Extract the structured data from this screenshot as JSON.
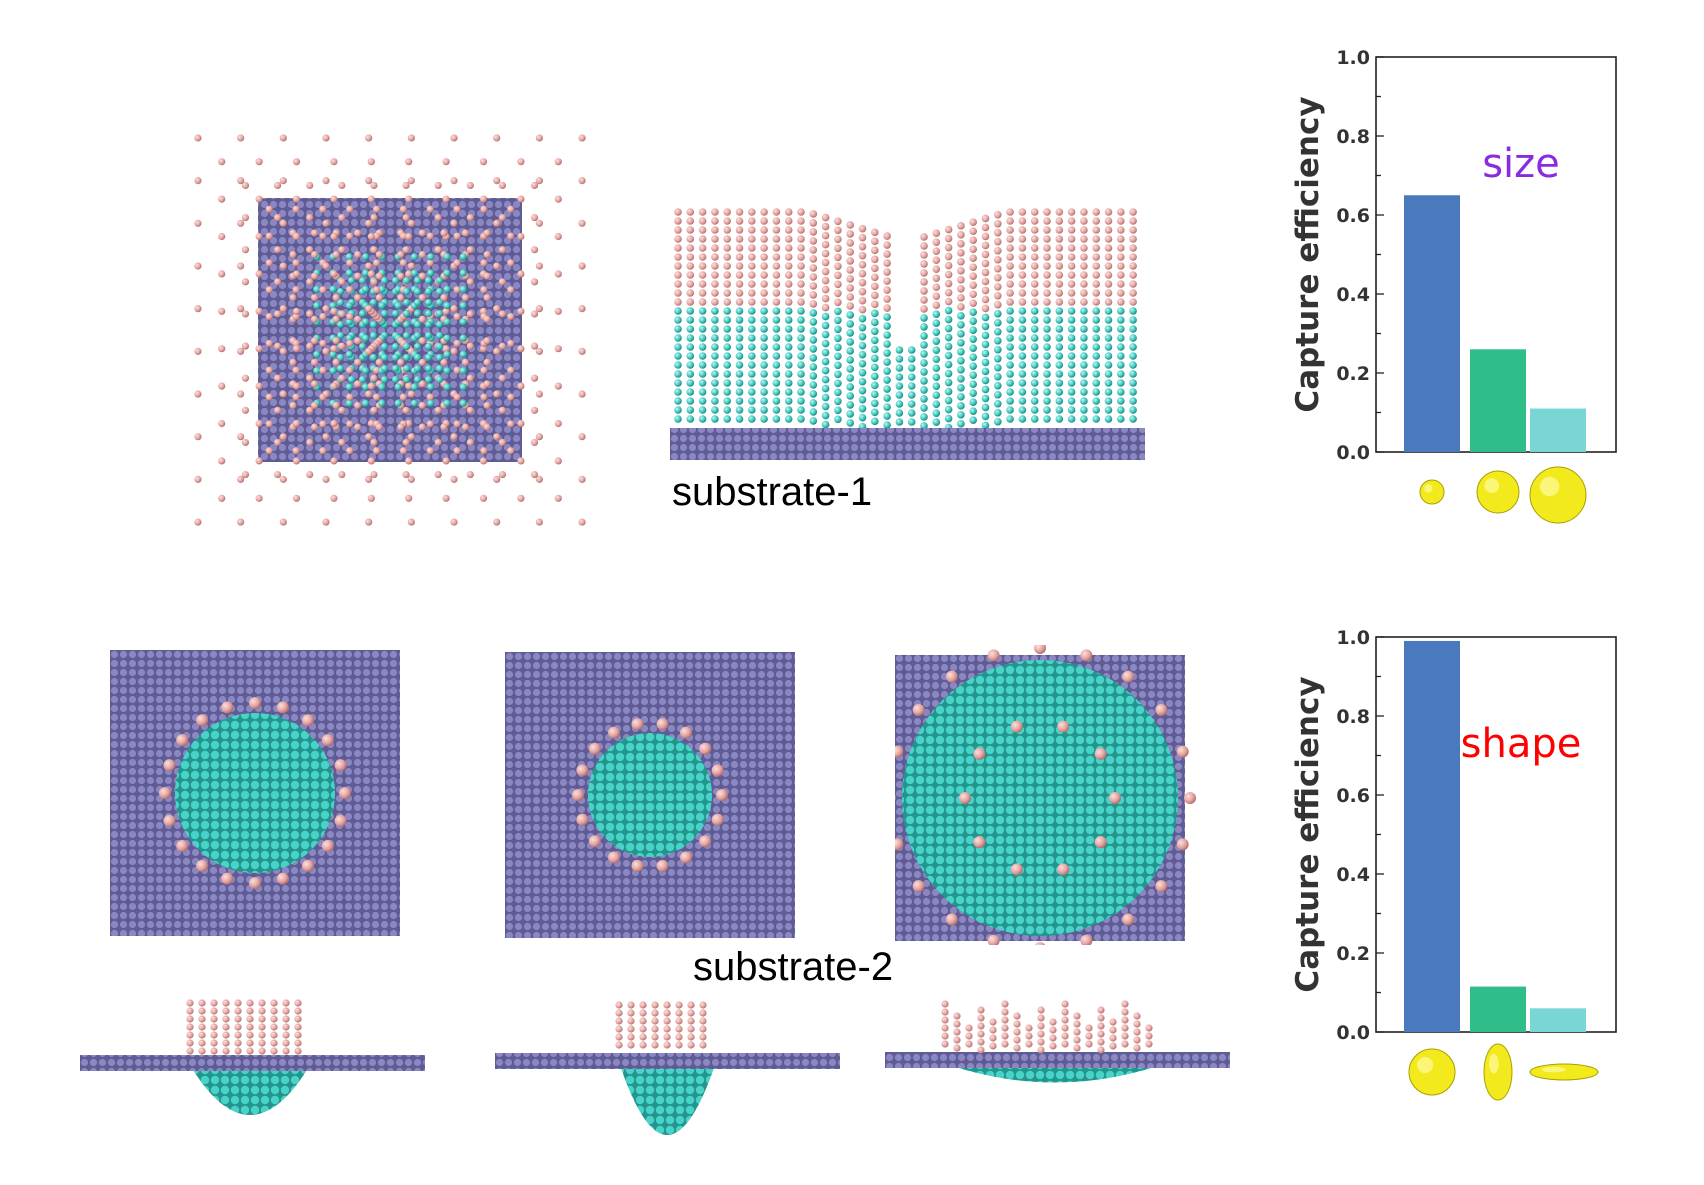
{
  "captions": {
    "substrate1": "substrate-1",
    "substrate2": "substrate-2"
  },
  "colors": {
    "pink_bead": "#e4a3a0",
    "cyan_bead": "#3cc7bd",
    "purple_bead": "#7b78b3",
    "yellow_particle": "#f2ea1c"
  },
  "chart_data": [
    {
      "type": "bar",
      "categories": [
        "small sphere",
        "medium sphere",
        "large sphere"
      ],
      "values": [
        0.65,
        0.26,
        0.11
      ],
      "bar_colors": [
        "#4a7abd",
        "#2fbd8a",
        "#7ad6d4"
      ],
      "ylabel": "Capture efficiency",
      "annotation": "size",
      "annotation_color": "#8a2be2",
      "ylim": [
        0,
        1.0
      ],
      "yticks": [
        "0.0",
        "0.2",
        "0.4",
        "0.6",
        "0.8",
        "1.0"
      ],
      "category_icons": [
        "small-sphere-particle-icon",
        "medium-sphere-particle-icon",
        "large-sphere-particle-icon"
      ]
    },
    {
      "type": "bar",
      "categories": [
        "sphere",
        "prolate",
        "oblate"
      ],
      "values": [
        0.99,
        0.115,
        0.06
      ],
      "bar_colors": [
        "#4a7abd",
        "#2fbd8a",
        "#7ad6d4"
      ],
      "ylabel": "Capture efficiency",
      "annotation": "shape",
      "annotation_color": "#ff0000",
      "ylim": [
        0,
        1.0
      ],
      "yticks": [
        "0.0",
        "0.2",
        "0.4",
        "0.6",
        "0.8",
        "1.0"
      ],
      "category_icons": [
        "sphere-particle-icon",
        "prolate-particle-icon",
        "oblate-particle-icon"
      ]
    }
  ]
}
